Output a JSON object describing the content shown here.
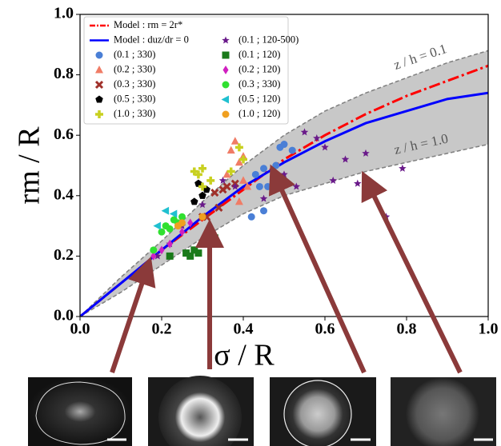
{
  "chart_data": {
    "type": "scatter",
    "xlabel": "σ / R",
    "ylabel": "rm / R",
    "xlim": [
      0,
      1.0
    ],
    "ylim": [
      0,
      1.0
    ],
    "xticks": [
      {
        "value": 0,
        "label": "0.0"
      },
      {
        "value": 0.2,
        "label": "0.2"
      },
      {
        "value": 0.4,
        "label": "0.4"
      },
      {
        "value": 0.6,
        "label": "0.6"
      },
      {
        "value": 0.8,
        "label": "0.8"
      },
      {
        "value": 1.0,
        "label": "1.0"
      }
    ],
    "yticks": [
      {
        "value": 0,
        "label": "0.0"
      },
      {
        "value": 0.2,
        "label": "0.2"
      },
      {
        "value": 0.4,
        "label": "0.4"
      },
      {
        "value": 0.6,
        "label": "0.6"
      },
      {
        "value": 0.8,
        "label": "0.8"
      },
      {
        "value": 1.0,
        "label": "1.0"
      }
    ],
    "curves": [
      {
        "label": "z / h = 0.1",
        "color": "#7f7f7f",
        "x": [
          0,
          0.1,
          0.2,
          0.3,
          0.4,
          0.5,
          0.6,
          0.7,
          0.8,
          0.9,
          1.0
        ],
        "values": [
          0,
          0.13,
          0.25,
          0.38,
          0.5,
          0.6,
          0.68,
          0.74,
          0.79,
          0.84,
          0.88
        ]
      },
      {
        "label": "z / h = 1.0",
        "color": "#7f7f7f",
        "x": [
          0,
          0.1,
          0.2,
          0.3,
          0.4,
          0.5,
          0.6,
          0.7,
          0.8,
          0.9,
          1.0
        ],
        "values": [
          0,
          0.08,
          0.17,
          0.26,
          0.34,
          0.4,
          0.44,
          0.48,
          0.51,
          0.54,
          0.57
        ]
      }
    ],
    "band_color": "#c8c8c8",
    "lines": [
      {
        "name": "Model : rm = 2r*",
        "color": "#ff0000",
        "dash": "dashdot",
        "x": [
          0,
          0.1,
          0.2,
          0.3,
          0.4,
          0.5,
          0.6,
          0.7,
          0.8,
          0.9,
          1.0
        ],
        "values": [
          0,
          0.11,
          0.22,
          0.32,
          0.42,
          0.52,
          0.6,
          0.67,
          0.73,
          0.78,
          0.83
        ]
      },
      {
        "name": "Model : duz/dr = 0",
        "color": "#0000ff",
        "dash": "solid",
        "x": [
          0,
          0.1,
          0.2,
          0.3,
          0.4,
          0.5,
          0.6,
          0.7,
          0.8,
          0.9,
          1.0
        ],
        "values": [
          0,
          0.11,
          0.22,
          0.33,
          0.43,
          0.51,
          0.58,
          0.64,
          0.68,
          0.72,
          0.74
        ]
      }
    ],
    "series": [
      {
        "name": "(0.1 ; 330)",
        "marker": "circle",
        "color": "#4a7fd6",
        "x": [
          0.43,
          0.45,
          0.44,
          0.46,
          0.42,
          0.45,
          0.49,
          0.5,
          0.48,
          0.52
        ],
        "values": [
          0.47,
          0.49,
          0.43,
          0.43,
          0.33,
          0.35,
          0.56,
          0.57,
          0.5,
          0.55
        ]
      },
      {
        "name": "(0.2 ; 330)",
        "marker": "triangle",
        "color": "#f07c66",
        "x": [
          0.37,
          0.38,
          0.39,
          0.4,
          0.36,
          0.4,
          0.41,
          0.39
        ],
        "values": [
          0.55,
          0.58,
          0.51,
          0.53,
          0.47,
          0.45,
          0.43,
          0.38
        ]
      },
      {
        "name": "(0.3 ; 330)",
        "marker": "x",
        "color": "#a0302a",
        "x": [
          0.3,
          0.31,
          0.33,
          0.35,
          0.36,
          0.38,
          0.34
        ],
        "values": [
          0.33,
          0.33,
          0.41,
          0.42,
          0.43,
          0.44,
          0.36
        ]
      },
      {
        "name": "(0.5 ; 330)",
        "marker": "pentagon",
        "color": "#000000",
        "x": [
          0.29,
          0.31,
          0.3,
          0.28
        ],
        "values": [
          0.44,
          0.42,
          0.4,
          0.38
        ]
      },
      {
        "name": "(1.0 ; 330)",
        "marker": "plus",
        "color": "#c8d020",
        "x": [
          0.28,
          0.29,
          0.3,
          0.32,
          0.37,
          0.39,
          0.4,
          0.3
        ],
        "values": [
          0.48,
          0.47,
          0.49,
          0.45,
          0.48,
          0.56,
          0.52,
          0.43
        ]
      },
      {
        "name": "(0.1 ; 120-500)",
        "marker": "star",
        "color": "#6a1a8a",
        "x": [
          0.55,
          0.58,
          0.6,
          0.65,
          0.7,
          0.75,
          0.79,
          0.62,
          0.5,
          0.53,
          0.35,
          0.38,
          0.3,
          0.25,
          0.22,
          0.19,
          0.45,
          0.68
        ],
        "values": [
          0.61,
          0.59,
          0.56,
          0.52,
          0.54,
          0.33,
          0.49,
          0.45,
          0.47,
          0.43,
          0.45,
          0.43,
          0.37,
          0.3,
          0.24,
          0.2,
          0.39,
          0.44
        ]
      },
      {
        "name": "(0.1 ; 120)",
        "marker": "square",
        "color": "#1a7a1a",
        "x": [
          0.26,
          0.27,
          0.29,
          0.31,
          0.33,
          0.22,
          0.28
        ],
        "values": [
          0.21,
          0.2,
          0.21,
          0.25,
          0.26,
          0.2,
          0.22
        ]
      },
      {
        "name": "(0.2 ; 120)",
        "marker": "diamond",
        "color": "#d020c0",
        "x": [
          0.18,
          0.2,
          0.22,
          0.25,
          0.27
        ],
        "values": [
          0.2,
          0.22,
          0.24,
          0.28,
          0.31
        ]
      },
      {
        "name": "(0.3 ; 330)",
        "marker": "circle",
        "color": "#30e030",
        "x": [
          0.2,
          0.21,
          0.22,
          0.23,
          0.24,
          0.18,
          0.25
        ],
        "values": [
          0.28,
          0.3,
          0.29,
          0.32,
          0.31,
          0.22,
          0.33
        ]
      },
      {
        "name": "(0.5 ; 120)",
        "marker": "triangle-left",
        "color": "#20c0d0",
        "x": [
          0.21,
          0.19,
          0.23
        ],
        "values": [
          0.35,
          0.3,
          0.34
        ]
      },
      {
        "name": "(1.0 ; 120)",
        "marker": "circle",
        "color": "#f0a020",
        "x": [
          0.25,
          0.3,
          0.24
        ],
        "values": [
          0.31,
          0.33,
          0.3
        ]
      }
    ]
  }
}
